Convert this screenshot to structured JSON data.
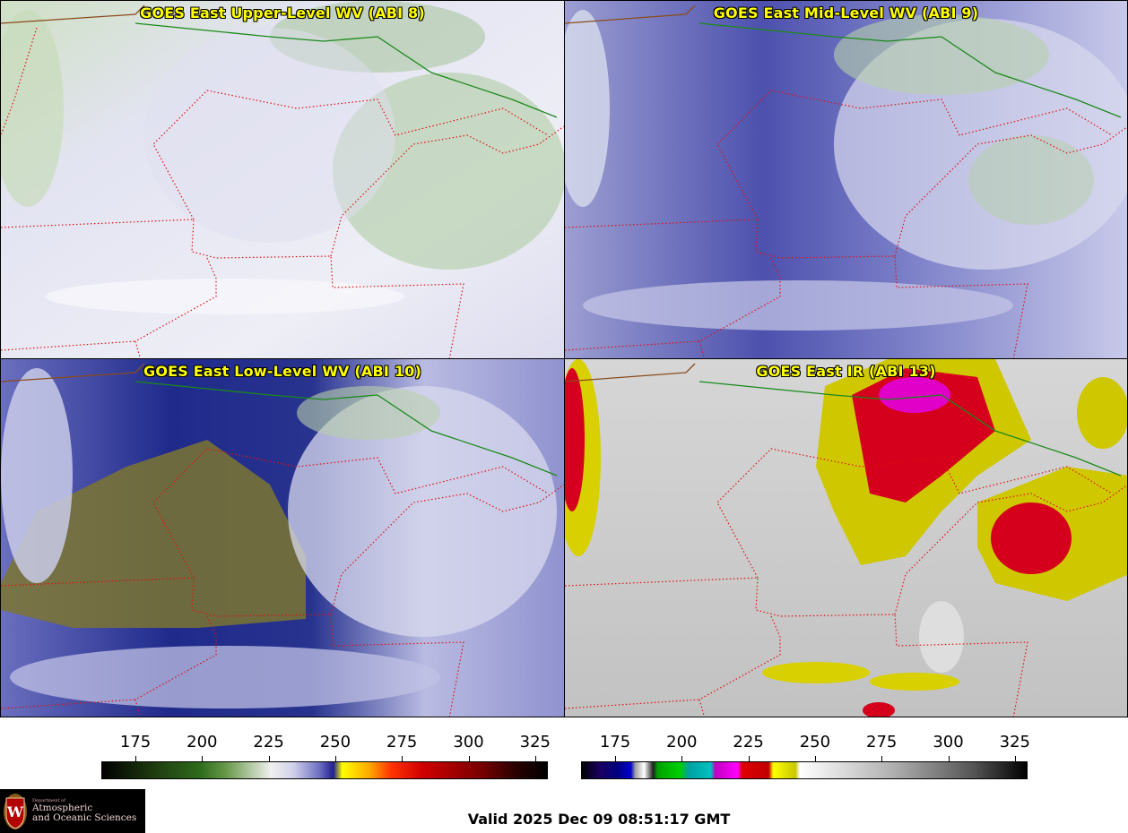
{
  "panels": [
    {
      "id": "ul",
      "title": "GOES East Upper-Level WV (ABI 8)",
      "base": "#d8d9ee",
      "accent": "#8fb67f",
      "dark": "#ececf4"
    },
    {
      "id": "ml",
      "title": "GOES East Mid-Level WV (ABI 9)",
      "base": "#8d8fcb",
      "accent": "#a9c79c",
      "dark": "#4b4fae"
    },
    {
      "id": "ll",
      "title": "GOES East Low-Level WV (ABI 10)",
      "base": "#2f3795",
      "accent": "#7f7a2e",
      "dark": "#0c1a6e"
    },
    {
      "id": "ir",
      "title": "GOES East IR (ABI 13)",
      "base": "#cfcfcf",
      "accent": "#d8d000",
      "dark": "#d7001f"
    }
  ],
  "colorbars": {
    "wv": {
      "ticks": [
        "175",
        "200",
        "225",
        "250",
        "275",
        "300",
        "325"
      ]
    },
    "ir": {
      "ticks": [
        "175",
        "200",
        "225",
        "250",
        "275",
        "300",
        "325"
      ]
    }
  },
  "valid_time": "Valid 2025 Dec 09 08:51:17 GMT",
  "logo": {
    "dept": "Department of",
    "line1": "Atmospheric",
    "line2": "and Oceanic Sciences",
    "letter": "W"
  }
}
